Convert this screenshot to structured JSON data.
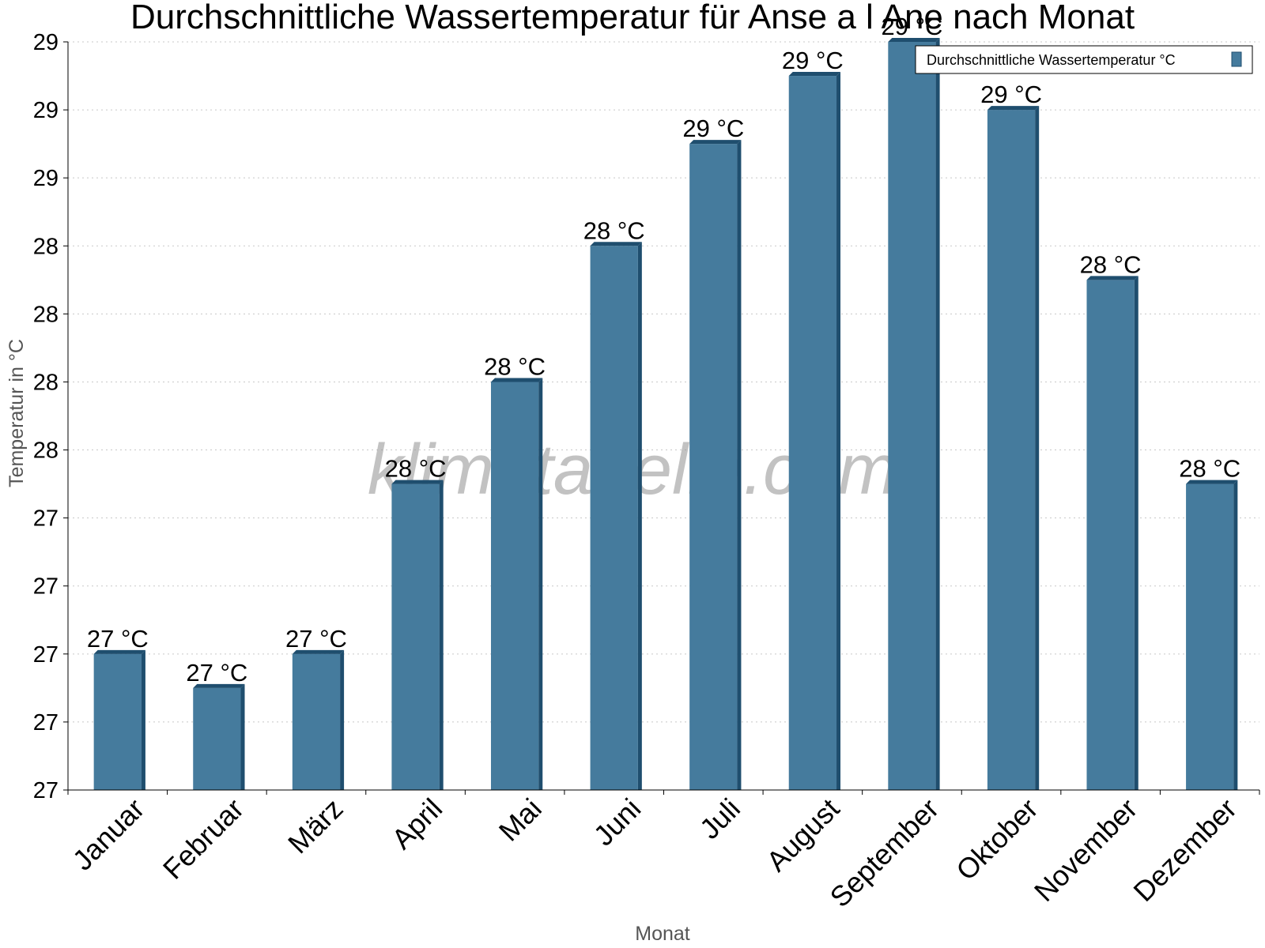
{
  "chart_data": {
    "type": "bar",
    "title": "Durchschnittliche Wassertemperatur für Anse a l Ane nach Monat",
    "xlabel": "Monat",
    "ylabel": "Temperatur in °C",
    "categories": [
      "Januar",
      "Februar",
      "März",
      "April",
      "Mai",
      "Juni",
      "Juli",
      "August",
      "September",
      "Oktober",
      "November",
      "Dezember"
    ],
    "series": [
      {
        "name": "Durchschnittliche Wassertemperatur °C",
        "values": [
          27.2,
          27.1,
          27.2,
          27.7,
          28.0,
          28.4,
          28.7,
          28.9,
          29.0,
          28.8,
          28.3,
          27.7
        ],
        "labels": [
          "27 °C",
          "27 °C",
          "27 °C",
          "28 °C",
          "28 °C",
          "28 °C",
          "29 °C",
          "29 °C",
          "29 °C",
          "29 °C",
          "28 °C",
          "28 °C"
        ]
      }
    ],
    "ylim": [
      26.8,
      29.0
    ],
    "yticks": [
      26.8,
      27.0,
      27.2,
      27.4,
      27.6,
      27.8,
      28.0,
      28.2,
      28.4,
      28.6,
      28.8,
      29.0
    ],
    "ytick_labels": [
      "27",
      "27",
      "27",
      "27",
      "27",
      "28",
      "28",
      "28",
      "28",
      "29",
      "29",
      "29"
    ],
    "grid": true,
    "legend_position": "top-right",
    "bar_color": "#457b9d",
    "bar_shade_color": "#1f4e6e",
    "watermark": "klimatabelle.com"
  }
}
